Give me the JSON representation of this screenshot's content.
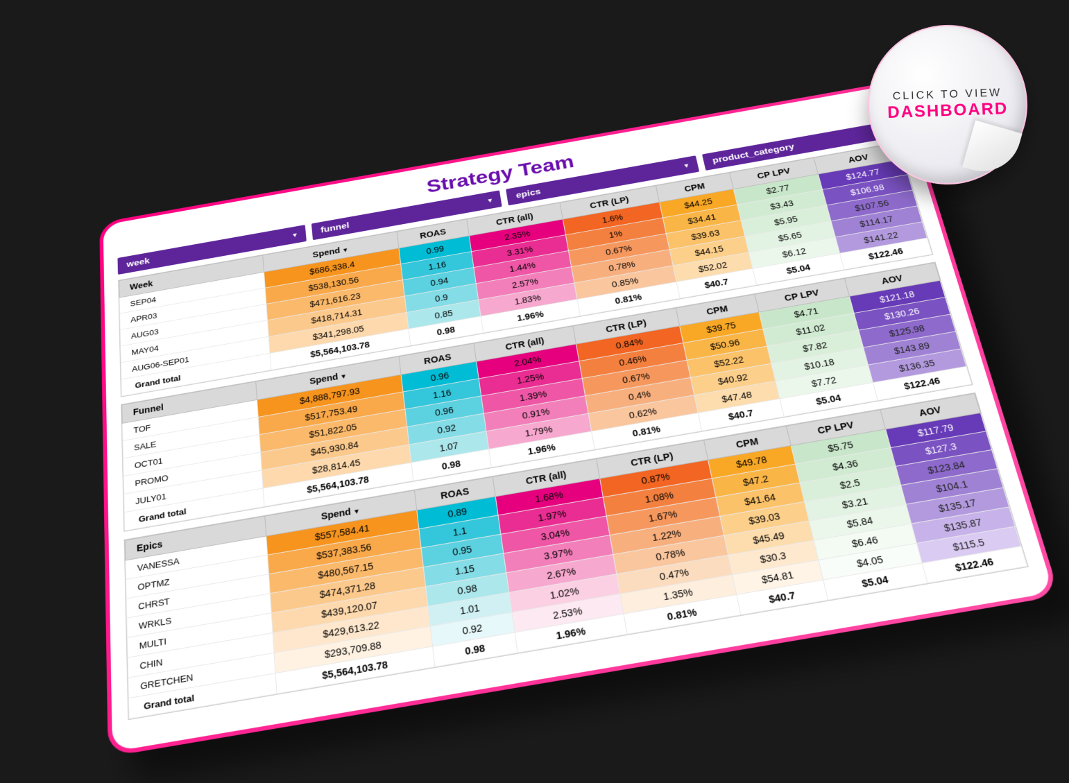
{
  "title": "Strategy Team",
  "title_color": "#6a0dad",
  "filter_bg": "#5e259b",
  "filters": [
    {
      "label": "week"
    },
    {
      "label": "funnel"
    },
    {
      "label": "epics"
    },
    {
      "label": "product_category"
    }
  ],
  "columns": [
    "Spend",
    "ROAS",
    "CTR (all)",
    "CTR (LP)",
    "CPM",
    "CP LPV",
    "AOV"
  ],
  "sort_column": "Spend",
  "col_colors": {
    "spend": [
      "#f7941d",
      "#f9a94a",
      "#fbb96b",
      "#fcc98c",
      "#fdd9ad",
      "#fee7cc",
      "#fff2e2"
    ],
    "roas": [
      "#00bcd4",
      "#34c6da",
      "#5cd1e0",
      "#84dce6",
      "#acE7ec",
      "#d0f0f3",
      "#e7f8fa"
    ],
    "ctrall": [
      "#e6007e",
      "#ea2d92",
      "#ef56a6",
      "#f37fba",
      "#f7a8ce",
      "#fbd0e2",
      "#fde9f1"
    ],
    "ctrlp": [
      "#f26522",
      "#f4803f",
      "#f6985e",
      "#f8af7e",
      "#fac69e",
      "#fcdcbe",
      "#feeedd"
    ],
    "cpm": [
      "#f9a825",
      "#faB547",
      "#fbc269",
      "#fccf8b",
      "#fddcad",
      "#fee9cf",
      "#fff4e6"
    ],
    "cplpv": [
      "#c8e6c9",
      "#d1ebd2",
      "#daefda",
      "#e3f3e3",
      "#ecf7ec",
      "#f3fbf3",
      "#f9fdf9"
    ],
    "aov": [
      "#673ab7",
      "#7a52c1",
      "#8d6acb",
      "#a082d5",
      "#b39adf",
      "#c7b3e9",
      "#dacbf3"
    ]
  },
  "sections": [
    {
      "name": "Week",
      "rows": [
        {
          "label": "SEP04",
          "spend": "$686,338.4",
          "roas": "0.99",
          "ctrall": "2.35%",
          "ctrlp": "1.6%",
          "cpm": "$44.25",
          "cplpv": "$2.77",
          "aov": "$124.77"
        },
        {
          "label": "APR03",
          "spend": "$538,130.56",
          "roas": "1.16",
          "ctrall": "3.31%",
          "ctrlp": "1%",
          "cpm": "$34.41",
          "cplpv": "$3.43",
          "aov": "$106.98"
        },
        {
          "label": "AUG03",
          "spend": "$471,616.23",
          "roas": "0.94",
          "ctrall": "1.44%",
          "ctrlp": "0.67%",
          "cpm": "$39.63",
          "cplpv": "$5.95",
          "aov": "$107.56"
        },
        {
          "label": "MAY04",
          "spend": "$418,714.31",
          "roas": "0.9",
          "ctrall": "2.57%",
          "ctrlp": "0.78%",
          "cpm": "$44.15",
          "cplpv": "$5.65",
          "aov": "$114.17"
        },
        {
          "label": "AUG06-SEP01",
          "spend": "$341,298.05",
          "roas": "0.85",
          "ctrall": "1.83%",
          "ctrlp": "0.85%",
          "cpm": "$52.02",
          "cplpv": "$6.12",
          "aov": "$141.22"
        }
      ],
      "total": {
        "label": "Grand total",
        "spend": "$5,564,103.78",
        "roas": "0.98",
        "ctrall": "1.96%",
        "ctrlp": "0.81%",
        "cpm": "$40.7",
        "cplpv": "$5.04",
        "aov": "$122.46"
      }
    },
    {
      "name": "Funnel",
      "rows": [
        {
          "label": "TOF",
          "spend": "$4,888,797.93",
          "roas": "0.96",
          "ctrall": "2.04%",
          "ctrlp": "0.84%",
          "cpm": "$39.75",
          "cplpv": "$4.71",
          "aov": "$121.18"
        },
        {
          "label": "SALE",
          "spend": "$517,753.49",
          "roas": "1.16",
          "ctrall": "1.25%",
          "ctrlp": "0.46%",
          "cpm": "$50.96",
          "cplpv": "$11.02",
          "aov": "$130.26"
        },
        {
          "label": "OCT01",
          "spend": "$51,822.05",
          "roas": "0.96",
          "ctrall": "1.39%",
          "ctrlp": "0.67%",
          "cpm": "$52.22",
          "cplpv": "$7.82",
          "aov": "$125.98"
        },
        {
          "label": "PROMO",
          "spend": "$45,930.84",
          "roas": "0.92",
          "ctrall": "0.91%",
          "ctrlp": "0.4%",
          "cpm": "$40.92",
          "cplpv": "$10.18",
          "aov": "$143.89"
        },
        {
          "label": "JULY01",
          "spend": "$28,814.45",
          "roas": "1.07",
          "ctrall": "1.79%",
          "ctrlp": "0.62%",
          "cpm": "$47.48",
          "cplpv": "$7.72",
          "aov": "$136.35"
        }
      ],
      "total": {
        "label": "Grand total",
        "spend": "$5,564,103.78",
        "roas": "0.98",
        "ctrall": "1.96%",
        "ctrlp": "0.81%",
        "cpm": "$40.7",
        "cplpv": "$5.04",
        "aov": "$122.46"
      }
    },
    {
      "name": "Epics",
      "rows": [
        {
          "label": "VANESSA",
          "spend": "$557,584.41",
          "roas": "0.89",
          "ctrall": "1.68%",
          "ctrlp": "0.87%",
          "cpm": "$49.78",
          "cplpv": "$5.75",
          "aov": "$117.79"
        },
        {
          "label": "OPTMZ",
          "spend": "$537,383.56",
          "roas": "1.1",
          "ctrall": "1.97%",
          "ctrlp": "1.08%",
          "cpm": "$47.2",
          "cplpv": "$4.36",
          "aov": "$127.3"
        },
        {
          "label": "CHRST",
          "spend": "$480,567.15",
          "roas": "0.95",
          "ctrall": "3.04%",
          "ctrlp": "1.67%",
          "cpm": "$41.64",
          "cplpv": "$2.5",
          "aov": "$123.84"
        },
        {
          "label": "WRKLS",
          "spend": "$474,371.28",
          "roas": "1.15",
          "ctrall": "3.97%",
          "ctrlp": "1.22%",
          "cpm": "$39.03",
          "cplpv": "$3.21",
          "aov": "$104.1"
        },
        {
          "label": "MULTI",
          "spend": "$439,120.07",
          "roas": "0.98",
          "ctrall": "2.67%",
          "ctrlp": "0.78%",
          "cpm": "$45.49",
          "cplpv": "$5.84",
          "aov": "$135.17"
        },
        {
          "label": "CHIN",
          "spend": "$429,613.22",
          "roas": "1.01",
          "ctrall": "1.02%",
          "ctrlp": "0.47%",
          "cpm": "$30.3",
          "cplpv": "$6.46",
          "aov": "$135.87"
        },
        {
          "label": "GRETCHEN",
          "spend": "$293,709.88",
          "roas": "0.92",
          "ctrall": "2.53%",
          "ctrlp": "1.35%",
          "cpm": "$54.81",
          "cplpv": "$4.05",
          "aov": "$115.5"
        }
      ],
      "total": {
        "label": "Grand total",
        "spend": "$5,564,103.78",
        "roas": "0.98",
        "ctrall": "1.96%",
        "ctrlp": "0.81%",
        "cpm": "$40.7",
        "cplpv": "$5.04",
        "aov": "$122.46"
      }
    }
  ],
  "sticker": {
    "line1": "CLICK TO VIEW",
    "line2": "DASHBOARD"
  }
}
